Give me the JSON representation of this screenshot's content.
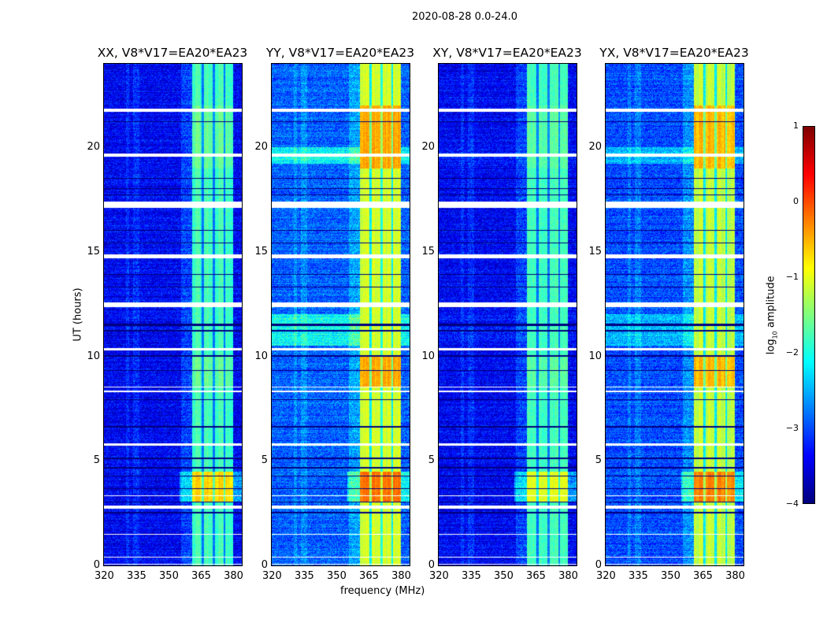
{
  "chart_data": {
    "type": "heatmap",
    "title": "2020-08-28 0.0-24.0",
    "xlabel": "frequency (MHz)",
    "ylabel": "UT (hours)",
    "xlim": [
      320,
      384
    ],
    "ylim": [
      0,
      24
    ],
    "xticks": [
      320,
      335,
      350,
      365,
      380
    ],
    "yticks": [
      0,
      5,
      10,
      15,
      20
    ],
    "colorbar": {
      "label_prefix": "log",
      "label_sub": "10",
      "label_suffix": "amplitude",
      "range": [
        -4,
        1
      ],
      "ticks": [
        {
          "value": 1,
          "label": "1"
        },
        {
          "value": 0,
          "label": "0"
        },
        {
          "value": -1,
          "label": "−1"
        },
        {
          "value": -2,
          "label": "−2"
        },
        {
          "value": -3,
          "label": "−3"
        },
        {
          "value": -4,
          "label": "−4"
        }
      ]
    },
    "band_mhz": [
      361,
      380
    ],
    "band_gaps_mhz": [
      366,
      371,
      376
    ],
    "flagged_hours": [
      [
        21.7,
        21.85
      ],
      [
        19.55,
        19.72
      ],
      [
        17.1,
        17.4
      ],
      [
        14.68,
        14.88
      ],
      [
        12.35,
        12.6
      ],
      [
        10.28,
        10.38
      ],
      [
        8.5,
        8.56
      ],
      [
        8.28,
        8.36
      ],
      [
        5.74,
        5.84
      ],
      [
        3.3,
        3.34
      ],
      [
        2.72,
        2.88
      ],
      [
        1.46,
        1.5
      ],
      [
        0.36,
        0.4
      ],
      [
        0.02,
        0.08
      ]
    ],
    "dropout_hours": [
      [
        21.2,
        21.25
      ],
      [
        18.5,
        18.55
      ],
      [
        18.0,
        18.05
      ],
      [
        17.7,
        17.75
      ],
      [
        16.0,
        16.05
      ],
      [
        15.4,
        15.45
      ],
      [
        13.9,
        13.95
      ],
      [
        13.3,
        13.35
      ],
      [
        11.45,
        11.55
      ],
      [
        11.2,
        11.26
      ],
      [
        10.0,
        10.05
      ],
      [
        9.3,
        9.35
      ],
      [
        7.9,
        7.95
      ],
      [
        6.6,
        6.68
      ],
      [
        5.1,
        5.15
      ],
      [
        4.65,
        4.7
      ],
      [
        4.25,
        4.3
      ],
      [
        3.65,
        3.7
      ],
      [
        3.0,
        3.05
      ],
      [
        2.5,
        2.55
      ]
    ],
    "panels": [
      {
        "title": "XX, V8*V17=EA20*EA23",
        "background": -3.4,
        "band": -1.8,
        "lowband_bright": -3.4,
        "band_burst": -0.7
      },
      {
        "title": "YY, V8*V17=EA20*EA23",
        "background": -2.9,
        "band": -1.1,
        "lowband_bright": -2.1,
        "band_burst": -0.2
      },
      {
        "title": "XY, V8*V17=EA20*EA23",
        "background": -3.4,
        "band": -1.8,
        "lowband_bright": -3.3,
        "band_burst": -1.0
      },
      {
        "title": "YX, V8*V17=EA20*EA23",
        "background": -3.0,
        "band": -1.2,
        "lowband_bright": -2.5,
        "band_burst": -0.3
      }
    ],
    "events": [
      {
        "hours": [
          3.0,
          4.5
        ],
        "description_level": 0.3
      },
      {
        "hours": [
          19.0,
          22.0
        ],
        "description_level": -0.4
      },
      {
        "hours": [
          8.5,
          10.0
        ],
        "description_level": -0.5
      }
    ]
  }
}
